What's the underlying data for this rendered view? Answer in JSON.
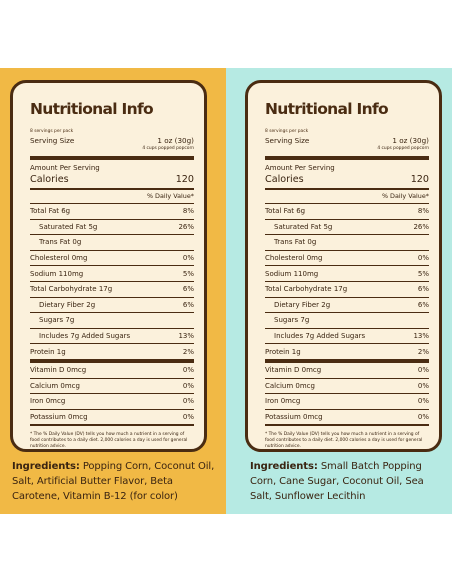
{
  "panels": [
    {
      "title": "Nutritional Info",
      "servings_per_pack": "8 servings per pack",
      "serving_size_label": "Serving Size",
      "serving_size_value": "1 oz (30g)",
      "serving_size_note": "4 cups popped popcorn",
      "amount_per_serving": "Amount Per Serving",
      "calories_label": "Calories",
      "calories_value": "120",
      "daily_value_header": "% Daily Value*",
      "nutrients": [
        {
          "label": "Total Fat 6g",
          "dv": "8%"
        },
        {
          "label": "Saturated Fat 5g",
          "dv": "26%"
        },
        {
          "label": "Trans Fat 0g",
          "dv": ""
        },
        {
          "label": "Cholesterol 0mg",
          "dv": "0%"
        },
        {
          "label": "Sodium 110mg",
          "dv": "5%"
        },
        {
          "label": "Total Carbohydrate 17g",
          "dv": "6%"
        },
        {
          "label": "Dietary Fiber 2g",
          "dv": "6%"
        },
        {
          "label": "Sugars 7g",
          "dv": ""
        },
        {
          "label": "Includes 7g Added Sugars",
          "dv": "13%"
        },
        {
          "label": "Protein 1g",
          "dv": "2%"
        },
        {
          "label": "Vitamin D 0mcg",
          "dv": "0%"
        },
        {
          "label": "Calcium 0mcg",
          "dv": "0%"
        },
        {
          "label": "Iron 0mcg",
          "dv": "0%"
        },
        {
          "label": "Potassium 0mcg",
          "dv": "0%"
        }
      ],
      "footnote": "* The % Daily Value (DV) tells you how much a nutrient in a serving of food contributes to a daily diet. 2,000 calories a day is used for general nutrition advice.",
      "ingredients_label": "Ingredients:",
      "ingredients_text": " Popping Corn, Coconut Oil, Salt, Artificial Butter Flavor, Beta Carotene, Vitamin B-12 (for color)"
    },
    {
      "title": "Nutritional Info",
      "servings_per_pack": "8 servings per pack",
      "serving_size_label": "Serving Size",
      "serving_size_value": "1 oz (30g)",
      "serving_size_note": "4 cups popped popcorn",
      "amount_per_serving": "Amount Per Serving",
      "calories_label": "Calories",
      "calories_value": "120",
      "daily_value_header": "% Daily Value*",
      "nutrients": [
        {
          "label": "Total Fat 6g",
          "dv": "8%"
        },
        {
          "label": "Saturated Fat 5g",
          "dv": "26%"
        },
        {
          "label": "Trans Fat 0g",
          "dv": ""
        },
        {
          "label": "Cholesterol 0mg",
          "dv": "0%"
        },
        {
          "label": "Sodium 110mg",
          "dv": "5%"
        },
        {
          "label": "Total Carbohydrate 17g",
          "dv": "6%"
        },
        {
          "label": "Dietary Fiber 2g",
          "dv": "6%"
        },
        {
          "label": "Sugars 7g",
          "dv": ""
        },
        {
          "label": "Includes 7g Added Sugars",
          "dv": "13%"
        },
        {
          "label": "Protein 1g",
          "dv": "2%"
        },
        {
          "label": "Vitamin D 0mcg",
          "dv": "0%"
        },
        {
          "label": "Calcium 0mcg",
          "dv": "0%"
        },
        {
          "label": "Iron 0mcg",
          "dv": "0%"
        },
        {
          "label": "Potassium 0mcg",
          "dv": "0%"
        }
      ],
      "footnote": "* The % Daily Value (DV) tells you how much a nutrient in a serving of food contributes to a daily diet. 2,000 calories a day is used for general nutrition advice.",
      "ingredients_label": "Ingredients:",
      "ingredients_text": " Small Batch Popping Corn, Cane Sugar, Coconut Oil, Sea Salt, Sunflower Lecithin"
    }
  ]
}
